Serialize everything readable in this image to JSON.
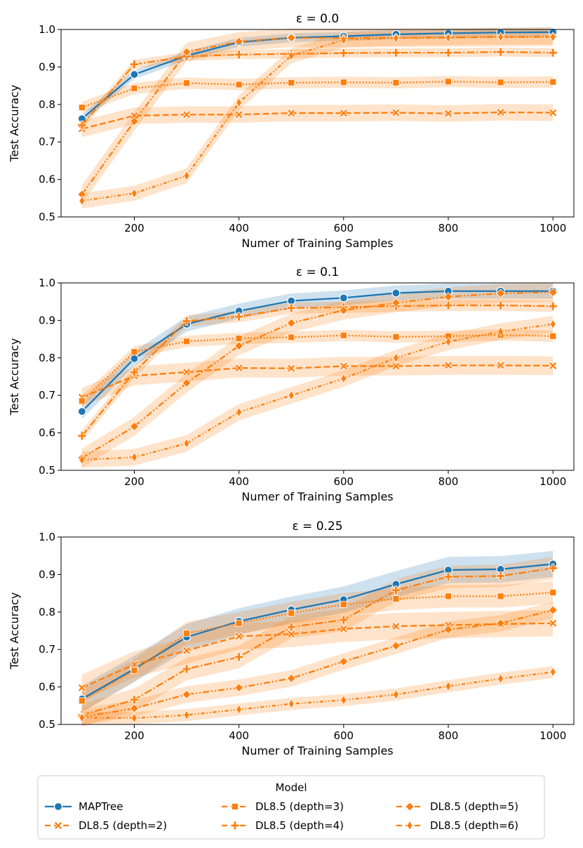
{
  "colors": {
    "blue": "#1f77b4",
    "orange": "#ff7f0e"
  },
  "legend": {
    "title": "Model",
    "entries": [
      {
        "name": "MAPTree",
        "color": "#1f77b4",
        "marker": "circle",
        "dash": "solid"
      },
      {
        "name": "DL8.5 (depth=2)",
        "color": "#ff7f0e",
        "marker": "x",
        "dash": "dashed"
      },
      {
        "name": "DL8.5 (depth=3)",
        "color": "#ff7f0e",
        "marker": "square",
        "dash": "dashed"
      },
      {
        "name": "DL8.5 (depth=4)",
        "color": "#ff7f0e",
        "marker": "plus",
        "dash": "dashed"
      },
      {
        "name": "DL8.5 (depth=5)",
        "color": "#ff7f0e",
        "marker": "diamond",
        "dash": "dashed"
      },
      {
        "name": "DL8.5 (depth=6)",
        "color": "#ff7f0e",
        "marker": "thin_diamond",
        "dash": "dashed"
      }
    ]
  },
  "chart_data": [
    {
      "type": "line",
      "title": "ε = 0.0",
      "xlabel": "Numer of Training Samples",
      "ylabel": "Test Accuracy",
      "ylim": [
        0.5,
        1.0
      ],
      "xlim": [
        60,
        1040
      ],
      "xticks": [
        200,
        400,
        600,
        800,
        1000
      ],
      "yticks": [
        0.5,
        0.6,
        0.7,
        0.8,
        0.9,
        1.0
      ],
      "x": [
        100,
        200,
        300,
        400,
        500,
        600,
        700,
        800,
        900,
        1000
      ],
      "series": [
        {
          "name": "MAPTree",
          "values": [
            0.762,
            0.88,
            0.93,
            0.966,
            0.978,
            0.982,
            0.987,
            0.99,
            0.992,
            0.993
          ],
          "band": 0.012
        },
        {
          "name": "DL8.5 (depth=2)",
          "values": [
            0.735,
            0.77,
            0.773,
            0.773,
            0.777,
            0.777,
            0.778,
            0.776,
            0.779,
            0.778
          ],
          "band": 0.022
        },
        {
          "name": "DL8.5 (depth=3)",
          "values": [
            0.792,
            0.843,
            0.857,
            0.853,
            0.858,
            0.859,
            0.858,
            0.861,
            0.859,
            0.86
          ],
          "band": 0.015
        },
        {
          "name": "DL8.5 (depth=4)",
          "values": [
            0.745,
            0.907,
            0.928,
            0.933,
            0.935,
            0.937,
            0.938,
            0.938,
            0.94,
            0.938
          ],
          "band": 0.012
        },
        {
          "name": "DL8.5 (depth=5)",
          "values": [
            0.56,
            0.755,
            0.94,
            0.968,
            0.978,
            0.977,
            0.978,
            0.979,
            0.98,
            0.981
          ],
          "band": 0.025
        },
        {
          "name": "DL8.5 (depth=6)",
          "values": [
            0.543,
            0.563,
            0.61,
            0.805,
            0.93,
            0.972,
            0.977,
            0.978,
            0.98,
            0.98
          ],
          "band": 0.02
        }
      ]
    },
    {
      "type": "line",
      "title": "ε = 0.1",
      "xlabel": "Numer of Training Samples",
      "ylabel": "Test Accuracy",
      "ylim": [
        0.5,
        1.0
      ],
      "xlim": [
        60,
        1040
      ],
      "xticks": [
        200,
        400,
        600,
        800,
        1000
      ],
      "yticks": [
        0.5,
        0.6,
        0.7,
        0.8,
        0.9,
        1.0
      ],
      "x": [
        100,
        200,
        300,
        400,
        500,
        600,
        700,
        800,
        900,
        1000
      ],
      "series": [
        {
          "name": "MAPTree",
          "values": [
            0.657,
            0.798,
            0.89,
            0.925,
            0.952,
            0.96,
            0.973,
            0.978,
            0.978,
            0.978
          ],
          "band": 0.02
        },
        {
          "name": "DL8.5 (depth=2)",
          "values": [
            0.695,
            0.752,
            0.762,
            0.773,
            0.772,
            0.778,
            0.778,
            0.78,
            0.78,
            0.779
          ],
          "band": 0.025
        },
        {
          "name": "DL8.5 (depth=3)",
          "values": [
            0.685,
            0.816,
            0.844,
            0.852,
            0.855,
            0.86,
            0.856,
            0.858,
            0.861,
            0.858
          ],
          "band": 0.015
        },
        {
          "name": "DL8.5 (depth=4)",
          "values": [
            0.592,
            0.762,
            0.898,
            0.91,
            0.933,
            0.935,
            0.938,
            0.94,
            0.94,
            0.938
          ],
          "band": 0.015
        },
        {
          "name": "DL8.5 (depth=5)",
          "values": [
            0.533,
            0.617,
            0.733,
            0.832,
            0.893,
            0.927,
            0.947,
            0.963,
            0.972,
            0.975
          ],
          "band": 0.025
        },
        {
          "name": "DL8.5 (depth=6)",
          "values": [
            0.528,
            0.535,
            0.572,
            0.655,
            0.7,
            0.745,
            0.8,
            0.843,
            0.87,
            0.89
          ],
          "band": 0.022
        }
      ]
    },
    {
      "type": "line",
      "title": "ε = 0.25",
      "xlabel": "Numer of Training Samples",
      "ylabel": "Test Accuracy",
      "ylim": [
        0.5,
        1.0
      ],
      "xlim": [
        60,
        1040
      ],
      "xticks": [
        200,
        400,
        600,
        800,
        1000
      ],
      "yticks": [
        0.5,
        0.6,
        0.7,
        0.8,
        0.9,
        1.0
      ],
      "x": [
        100,
        200,
        300,
        400,
        500,
        600,
        700,
        800,
        900,
        1000
      ],
      "series": [
        {
          "name": "MAPTree",
          "values": [
            0.568,
            0.648,
            0.733,
            0.775,
            0.806,
            0.833,
            0.874,
            0.912,
            0.914,
            0.928
          ],
          "band": 0.035
        },
        {
          "name": "DL8.5 (depth=2)",
          "values": [
            0.598,
            0.66,
            0.697,
            0.735,
            0.741,
            0.755,
            0.762,
            0.765,
            0.768,
            0.77
          ],
          "band": 0.035
        },
        {
          "name": "DL8.5 (depth=3)",
          "values": [
            0.563,
            0.644,
            0.743,
            0.77,
            0.797,
            0.82,
            0.835,
            0.842,
            0.842,
            0.852
          ],
          "band": 0.03
        },
        {
          "name": "DL8.5 (depth=4)",
          "values": [
            0.525,
            0.566,
            0.648,
            0.68,
            0.76,
            0.779,
            0.858,
            0.894,
            0.896,
            0.917
          ],
          "band": 0.03
        },
        {
          "name": "DL8.5 (depth=5)",
          "values": [
            0.52,
            0.543,
            0.58,
            0.598,
            0.623,
            0.668,
            0.71,
            0.753,
            0.77,
            0.805
          ],
          "band": 0.022
        },
        {
          "name": "DL8.5 (depth=6)",
          "values": [
            0.518,
            0.517,
            0.525,
            0.54,
            0.555,
            0.565,
            0.58,
            0.602,
            0.622,
            0.64
          ],
          "band": 0.016
        }
      ]
    }
  ]
}
